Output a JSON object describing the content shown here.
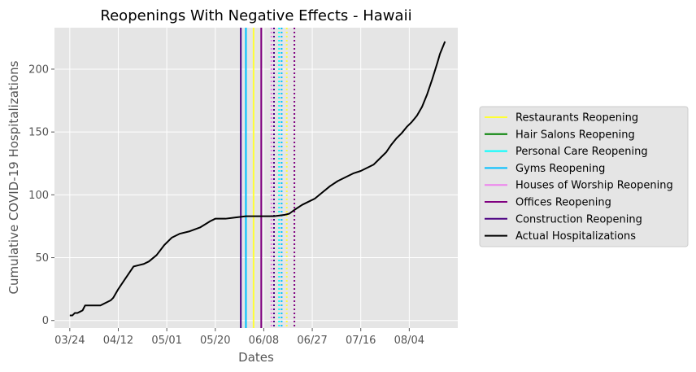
{
  "chart_data": {
    "type": "line",
    "title": "Reopenings With Negative Effects - Hawaii",
    "xlabel": "Dates",
    "ylabel": "Cumulative COVID-19 Hospitalizations",
    "x_tick_labels": [
      "03/24",
      "04/12",
      "05/01",
      "05/20",
      "06/08",
      "06/27",
      "07/16",
      "08/04"
    ],
    "x_tick_dates": [
      "2020-03-24",
      "2020-04-12",
      "2020-05-01",
      "2020-05-20",
      "2020-06-08",
      "2020-06-27",
      "2020-07-16",
      "2020-08-04"
    ],
    "xlim": [
      "2020-03-18",
      "2020-08-23"
    ],
    "y_ticks": [
      0,
      50,
      100,
      150,
      200
    ],
    "ylim": [
      -6,
      233
    ],
    "grid": true,
    "legend_position": "right",
    "series": [
      {
        "name": "Actual Hospitalizations",
        "color": "#000000",
        "points": [
          [
            "2020-03-24",
            4
          ],
          [
            "2020-03-25",
            4
          ],
          [
            "2020-03-26",
            6
          ],
          [
            "2020-03-27",
            6
          ],
          [
            "2020-03-28",
            7
          ],
          [
            "2020-03-29",
            8
          ],
          [
            "2020-03-30",
            12
          ],
          [
            "2020-04-02",
            12
          ],
          [
            "2020-04-05",
            12
          ],
          [
            "2020-04-07",
            14
          ],
          [
            "2020-04-09",
            16
          ],
          [
            "2020-04-10",
            18
          ],
          [
            "2020-04-12",
            25
          ],
          [
            "2020-04-14",
            31
          ],
          [
            "2020-04-16",
            37
          ],
          [
            "2020-04-18",
            43
          ],
          [
            "2020-04-20",
            44
          ],
          [
            "2020-04-22",
            45
          ],
          [
            "2020-04-24",
            47
          ],
          [
            "2020-04-27",
            52
          ],
          [
            "2020-04-30",
            60
          ],
          [
            "2020-05-03",
            66
          ],
          [
            "2020-05-06",
            69
          ],
          [
            "2020-05-10",
            71
          ],
          [
            "2020-05-14",
            74
          ],
          [
            "2020-05-18",
            79
          ],
          [
            "2020-05-20",
            81
          ],
          [
            "2020-05-24",
            81
          ],
          [
            "2020-05-28",
            82
          ],
          [
            "2020-06-01",
            83
          ],
          [
            "2020-06-06",
            83
          ],
          [
            "2020-06-12",
            83
          ],
          [
            "2020-06-16",
            84
          ],
          [
            "2020-06-18",
            85
          ],
          [
            "2020-06-20",
            88
          ],
          [
            "2020-06-23",
            92
          ],
          [
            "2020-06-26",
            95
          ],
          [
            "2020-06-28",
            97
          ],
          [
            "2020-07-01",
            102
          ],
          [
            "2020-07-04",
            107
          ],
          [
            "2020-07-07",
            111
          ],
          [
            "2020-07-10",
            114
          ],
          [
            "2020-07-13",
            117
          ],
          [
            "2020-07-16",
            119
          ],
          [
            "2020-07-19",
            122
          ],
          [
            "2020-07-21",
            124
          ],
          [
            "2020-07-23",
            128
          ],
          [
            "2020-07-26",
            134
          ],
          [
            "2020-07-28",
            140
          ],
          [
            "2020-07-30",
            145
          ],
          [
            "2020-08-01",
            149
          ],
          [
            "2020-08-03",
            154
          ],
          [
            "2020-08-05",
            158
          ],
          [
            "2020-08-07",
            163
          ],
          [
            "2020-08-09",
            170
          ],
          [
            "2020-08-11",
            180
          ],
          [
            "2020-08-13",
            192
          ],
          [
            "2020-08-15",
            205
          ],
          [
            "2020-08-16",
            212
          ],
          [
            "2020-08-18",
            222
          ]
        ]
      }
    ],
    "reopening_lines": [
      {
        "name": "Restaurants Reopening",
        "color": "#ffff33",
        "solid_date": "2020-06-04",
        "dotted_date": "2020-06-17"
      },
      {
        "name": "Hair Salons Reopening",
        "color": "#008000",
        "solid_date": null,
        "dotted_date": null
      },
      {
        "name": "Personal Care Reopening",
        "color": "#00ffff",
        "solid_date": "2020-06-01",
        "dotted_date": "2020-06-14"
      },
      {
        "name": "Gyms Reopening",
        "color": "#00bfff",
        "solid_date": "2020-06-01",
        "dotted_date": "2020-06-15"
      },
      {
        "name": "Houses of Worship Reopening",
        "color": "#ee82ee",
        "solid_date": null,
        "dotted_date": "2020-06-11"
      },
      {
        "name": "Offices Reopening",
        "color": "#800080",
        "solid_date": "2020-06-07",
        "dotted_date": "2020-06-20"
      },
      {
        "name": "Construction Reopening",
        "color": "#4b0082",
        "solid_date": "2020-05-30",
        "dotted_date": "2020-06-12"
      }
    ],
    "legend": [
      {
        "label": "Restaurants Reopening",
        "color": "#ffff33"
      },
      {
        "label": "Hair Salons Reopening",
        "color": "#008000"
      },
      {
        "label": "Personal Care Reopening",
        "color": "#00ffff"
      },
      {
        "label": "Gyms Reopening",
        "color": "#00bfff"
      },
      {
        "label": "Houses of Worship Reopening",
        "color": "#ee82ee"
      },
      {
        "label": "Offices Reopening",
        "color": "#800080"
      },
      {
        "label": "Construction Reopening",
        "color": "#4b0082"
      },
      {
        "label": "Actual Hospitalizations",
        "color": "#000000"
      }
    ]
  }
}
